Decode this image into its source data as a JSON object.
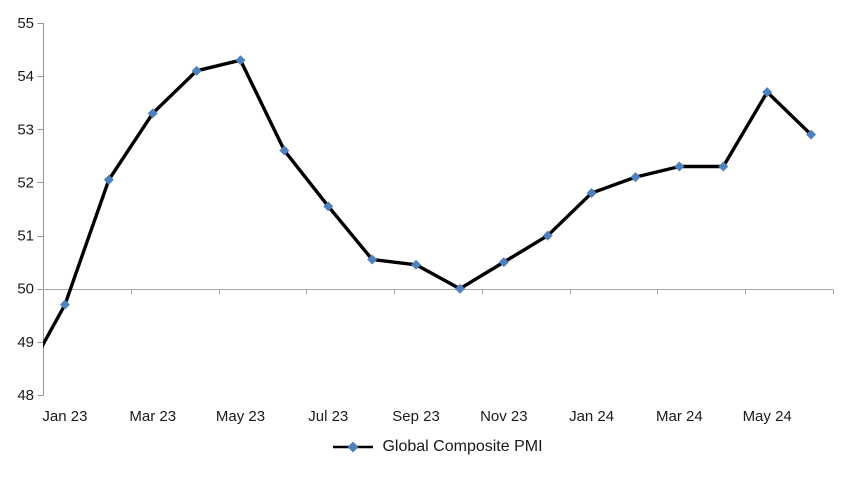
{
  "chart_data": {
    "type": "line",
    "title": "",
    "categories": [
      "Dec 22",
      "Jan 23",
      "Feb 23",
      "Mar 23",
      "Apr 23",
      "May 23",
      "Jun 23",
      "Jul 23",
      "Aug 23",
      "Sep 23",
      "Oct 23",
      "Nov 23",
      "Dec 23",
      "Jan 24",
      "Feb 24",
      "Mar 24",
      "Apr 24",
      "May 24",
      "Jun 24"
    ],
    "series": [
      {
        "name": "Global Composite PMI",
        "values": [
          48.2,
          49.7,
          52.05,
          53.3,
          54.1,
          54.3,
          52.6,
          51.55,
          50.55,
          50.45,
          50.0,
          50.5,
          51.0,
          51.8,
          52.1,
          52.3,
          52.3,
          53.7,
          52.9
        ],
        "line_color": "#000000",
        "marker": "diamond",
        "marker_color": "#4F81BD"
      }
    ],
    "ylim": [
      48,
      55
    ],
    "yticks": [
      48,
      49,
      50,
      51,
      52,
      53,
      54,
      55
    ],
    "xtick_labels": [
      "Jan 23",
      "Mar 23",
      "May 23",
      "Jul 23",
      "Sep 23",
      "Nov 23",
      "Jan 24",
      "Mar 24",
      "May 24"
    ],
    "reference_line_y": 50,
    "legend_position": "bottom-center",
    "grid": false,
    "colors": {
      "axis": "#969696",
      "reference_line": "#A6A6A6",
      "text": "#1A1A1A"
    },
    "layout_hints": {
      "first_point_clipped_at_left_axis": true,
      "x_labels_every_n_categories": 2,
      "boundary_ticks_on_reference_line_every_n_categories": 2
    }
  }
}
